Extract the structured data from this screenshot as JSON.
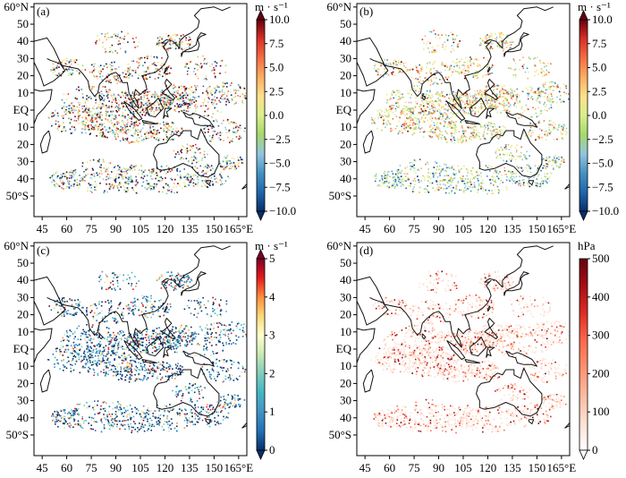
{
  "panels": [
    {
      "id": "a",
      "tag": "(a)",
      "unit": "m · s⁻¹",
      "colormap": "diverging-rdylbu",
      "cbar_ticks": [
        "10.0",
        "7.5",
        "5.0",
        "2.5",
        "0.0",
        "−2.5",
        "−5.0",
        "−7.5",
        "−10.0"
      ],
      "cbar_ends": "both"
    },
    {
      "id": "b",
      "tag": "(b)",
      "unit": "m · s⁻¹",
      "colormap": "diverging-rdylbu",
      "cbar_ticks": [
        "10.0",
        "7.5",
        "5.0",
        "2.5",
        "0.0",
        "−2.5",
        "−5.0",
        "−7.5",
        "−10.0"
      ],
      "cbar_ends": "both"
    },
    {
      "id": "c",
      "tag": "(c)",
      "unit": "m · s⁻¹",
      "colormap": "sequential-blue-yellow-red",
      "cbar_ticks": [
        "5",
        "4",
        "3",
        "2",
        "1",
        "0"
      ],
      "cbar_ends": "both"
    },
    {
      "id": "d",
      "tag": "(d)",
      "unit": "hPa",
      "colormap": "sequential-white-red",
      "cbar_ticks": [
        "500",
        "400",
        "300",
        "200",
        "100",
        "0"
      ],
      "cbar_ends": "min"
    }
  ],
  "axes": {
    "lat_labels": [
      "60°N",
      "50",
      "40",
      "30",
      "20",
      "10",
      "EQ",
      "10",
      "20",
      "30",
      "40",
      "50°S"
    ],
    "lon_labels": [
      "45",
      "60",
      "75",
      "90",
      "105",
      "120",
      "135",
      "150",
      "165°E"
    ]
  },
  "colors": {
    "diverging": [
      "#08306b",
      "#2166ac",
      "#4393c3",
      "#92c5de",
      "#a6d96a",
      "#d9ef8b",
      "#fee08b",
      "#fdae61",
      "#f46d43",
      "#d73027",
      "#67000d"
    ],
    "sequential": [
      "#08306b",
      "#2171b5",
      "#4292c6",
      "#41b6c4",
      "#7fcdbb",
      "#c7e9b4",
      "#ffffcc",
      "#fed976",
      "#fd8d3c",
      "#e31a1c",
      "#800026"
    ],
    "reds": [
      "#ffffff",
      "#fee0d2",
      "#fcbba1",
      "#fc9272",
      "#fb6a4a",
      "#de2d26",
      "#a50f15",
      "#67000d"
    ]
  }
}
